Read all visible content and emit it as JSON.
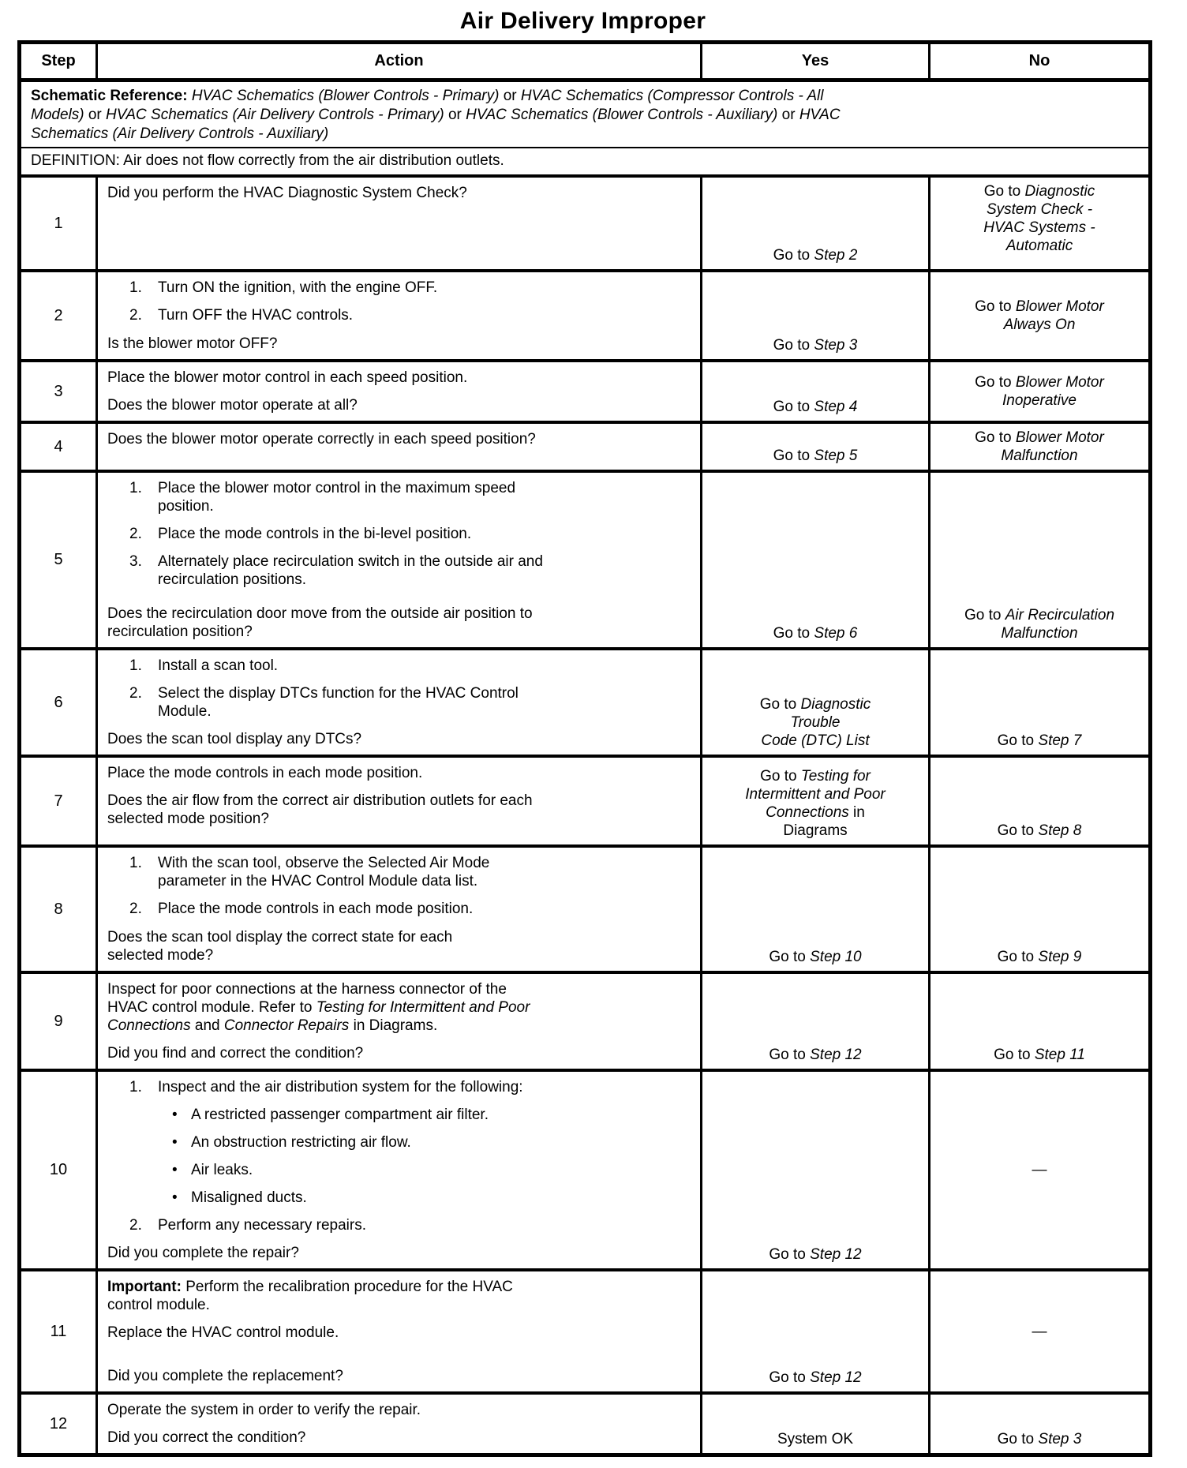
{
  "title": "Air Delivery Improper",
  "table": {
    "headers": [
      "Step",
      "Action",
      "Yes",
      "No"
    ],
    "schematic": {
      "segs": [
        {
          "t": "Schematic Reference: ",
          "s": "b"
        },
        {
          "t": "HVAC Schematics (Blower Controls - Primary)",
          "s": "i"
        },
        {
          "t": " or ",
          "s": "r"
        },
        {
          "t": "HVAC Schematics (Compressor Controls - All\nModels)",
          "s": "i"
        },
        {
          "t": " or ",
          "s": "r"
        },
        {
          "t": "HVAC Schematics (Air Delivery Controls - Primary)",
          "s": "i"
        },
        {
          "t": " or ",
          "s": "r"
        },
        {
          "t": "HVAC Schematics (Blower Controls - Auxiliary)",
          "s": "i"
        },
        {
          "t": " or ",
          "s": "r"
        },
        {
          "t": "HVAC\nSchematics (Air Delivery Controls - Auxiliary)",
          "s": "i"
        }
      ]
    },
    "definition": {
      "segs": [
        {
          "t": "DEFINITION: Air does not flow correctly from the air distribution outlets.",
          "s": "r"
        }
      ]
    },
    "rows": [
      {
        "step": "1",
        "action": [
          {
            "type": "para",
            "segs": [
              {
                "t": "Did you perform the HVAC Diagnostic System Check?",
                "s": "r"
              }
            ]
          }
        ],
        "yes": {
          "valign": "bottom",
          "lines": [
            [
              {
                "t": "Go to ",
                "s": "r"
              },
              {
                "t": "Step 2",
                "s": "i"
              }
            ]
          ]
        },
        "no": {
          "valign": "top",
          "lines": [
            [
              {
                "t": "Go to ",
                "s": "r"
              },
              {
                "t": "Diagnostic",
                "s": "i"
              }
            ],
            [
              {
                "t": "System Check -",
                "s": "i"
              }
            ],
            [
              {
                "t": "HVAC Systems -",
                "s": "i"
              }
            ],
            [
              {
                "t": "Automatic",
                "s": "i"
              }
            ]
          ]
        }
      },
      {
        "step": "2",
        "action": [
          {
            "type": "num",
            "n": "1.",
            "segs": [
              {
                "t": "Turn ON the ignition, with the engine OFF.",
                "s": "r"
              }
            ]
          },
          {
            "type": "num",
            "n": "2.",
            "segs": [
              {
                "t": "Turn OFF the HVAC controls.",
                "s": "r"
              }
            ]
          },
          {
            "type": "para",
            "bottom": true,
            "segs": [
              {
                "t": "Is the blower motor OFF?",
                "s": "r"
              }
            ]
          }
        ],
        "yes": {
          "valign": "bottom",
          "lines": [
            [
              {
                "t": "Go to ",
                "s": "r"
              },
              {
                "t": "Step 3",
                "s": "i"
              }
            ]
          ]
        },
        "no": {
          "valign": "center",
          "lines": [
            [
              {
                "t": "Go to ",
                "s": "r"
              },
              {
                "t": "Blower Motor",
                "s": "i"
              }
            ],
            [
              {
                "t": "Always On",
                "s": "i"
              }
            ]
          ]
        }
      },
      {
        "step": "3",
        "action": [
          {
            "type": "para",
            "segs": [
              {
                "t": "Place the blower motor control in each speed position.",
                "s": "r"
              }
            ]
          },
          {
            "type": "para",
            "bottom": true,
            "segs": [
              {
                "t": "Does the blower motor operate at all?",
                "s": "r"
              }
            ]
          }
        ],
        "yes": {
          "valign": "bottom",
          "lines": [
            [
              {
                "t": "Go to ",
                "s": "r"
              },
              {
                "t": "Step 4",
                "s": "i"
              }
            ]
          ]
        },
        "no": {
          "valign": "center",
          "lines": [
            [
              {
                "t": "Go to ",
                "s": "r"
              },
              {
                "t": "Blower Motor",
                "s": "i"
              }
            ],
            [
              {
                "t": "Inoperative",
                "s": "i"
              }
            ]
          ]
        }
      },
      {
        "step": "4",
        "action": [
          {
            "type": "para",
            "segs": [
              {
                "t": "Does the blower motor operate correctly in each speed position?",
                "s": "r"
              }
            ]
          }
        ],
        "yes": {
          "valign": "bottom",
          "lines": [
            [
              {
                "t": "Go to ",
                "s": "r"
              },
              {
                "t": "Step 5",
                "s": "i"
              }
            ]
          ]
        },
        "no": {
          "valign": "center",
          "lines": [
            [
              {
                "t": "Go to ",
                "s": "r"
              },
              {
                "t": "Blower Motor",
                "s": "i"
              }
            ],
            [
              {
                "t": "Malfunction",
                "s": "i"
              }
            ]
          ]
        }
      },
      {
        "step": "5",
        "action": [
          {
            "type": "num",
            "n": "1.",
            "segs": [
              {
                "t": "Place the blower motor control in the maximum speed\nposition.",
                "s": "r"
              }
            ]
          },
          {
            "type": "num",
            "n": "2.",
            "segs": [
              {
                "t": "Place the mode controls in the bi-level position.",
                "s": "r"
              }
            ]
          },
          {
            "type": "num",
            "n": "3.",
            "segs": [
              {
                "t": "Alternately place recirculation switch in the outside air and\nrecirculation positions.",
                "s": "r"
              }
            ]
          },
          {
            "type": "para",
            "bottom": true,
            "segs": [
              {
                "t": "Does the recirculation door move from the outside air position to\nrecirculation position?",
                "s": "r"
              }
            ]
          }
        ],
        "yes": {
          "valign": "bottom",
          "lines": [
            [
              {
                "t": "Go to ",
                "s": "r"
              },
              {
                "t": "Step 6",
                "s": "i"
              }
            ]
          ]
        },
        "no": {
          "valign": "bottom",
          "lines": [
            [
              {
                "t": "Go to ",
                "s": "r"
              },
              {
                "t": "Air Recirculation",
                "s": "i"
              }
            ],
            [
              {
                "t": "Malfunction",
                "s": "i"
              }
            ]
          ]
        }
      },
      {
        "step": "6",
        "action": [
          {
            "type": "num",
            "n": "1.",
            "segs": [
              {
                "t": "Install a scan tool.",
                "s": "r"
              }
            ]
          },
          {
            "type": "num",
            "n": "2.",
            "segs": [
              {
                "t": "Select the display DTCs function for the HVAC Control\nModule.",
                "s": "r"
              }
            ]
          },
          {
            "type": "para",
            "bottom": true,
            "segs": [
              {
                "t": "Does the scan tool display any DTCs?",
                "s": "r"
              }
            ]
          }
        ],
        "yes": {
          "valign": "bottom",
          "lines": [
            [
              {
                "t": "Go to ",
                "s": "r"
              },
              {
                "t": "Diagnostic",
                "s": "i"
              }
            ],
            [
              {
                "t": "Trouble",
                "s": "i"
              }
            ],
            [
              {
                "t": "Code (DTC) List",
                "s": "i"
              }
            ]
          ]
        },
        "no": {
          "valign": "bottom",
          "lines": [
            [
              {
                "t": "Go to ",
                "s": "r"
              },
              {
                "t": "Step 7",
                "s": "i"
              }
            ]
          ]
        }
      },
      {
        "step": "7",
        "action": [
          {
            "type": "para",
            "segs": [
              {
                "t": "Place the mode controls in each mode position.",
                "s": "r"
              }
            ]
          },
          {
            "type": "para",
            "segs": [
              {
                "t": "Does the air flow from the correct air distribution outlets for each\nselected mode position?",
                "s": "r"
              }
            ]
          }
        ],
        "yes": {
          "valign": "bottom",
          "lines": [
            [
              {
                "t": "Go to ",
                "s": "r"
              },
              {
                "t": "Testing for",
                "s": "i"
              }
            ],
            [
              {
                "t": "Intermittent and Poor",
                "s": "i"
              }
            ],
            [
              {
                "t": "Connections",
                "s": "i"
              },
              {
                "t": " in",
                "s": "r"
              }
            ],
            [
              {
                "t": "Diagrams",
                "s": "r"
              }
            ]
          ]
        },
        "no": {
          "valign": "bottom",
          "lines": [
            [
              {
                "t": "Go to ",
                "s": "r"
              },
              {
                "t": "Step 8",
                "s": "i"
              }
            ]
          ]
        }
      },
      {
        "step": "8",
        "action": [
          {
            "type": "num",
            "n": "1.",
            "segs": [
              {
                "t": "With the scan tool, observe the Selected Air Mode\nparameter in the HVAC Control Module data list.",
                "s": "r"
              }
            ]
          },
          {
            "type": "num",
            "n": "2.",
            "segs": [
              {
                "t": "Place the mode controls in each mode position.",
                "s": "r"
              }
            ]
          },
          {
            "type": "para",
            "bottom": true,
            "segs": [
              {
                "t": "Does the scan tool display the correct state for each\nselected mode?",
                "s": "r"
              }
            ]
          }
        ],
        "yes": {
          "valign": "bottom",
          "lines": [
            [
              {
                "t": "Go to ",
                "s": "r"
              },
              {
                "t": "Step 10",
                "s": "i"
              }
            ]
          ]
        },
        "no": {
          "valign": "bottom",
          "lines": [
            [
              {
                "t": "Go to ",
                "s": "r"
              },
              {
                "t": "Step 9",
                "s": "i"
              }
            ]
          ]
        }
      },
      {
        "step": "9",
        "action": [
          {
            "type": "para",
            "segs": [
              {
                "t": "Inspect for poor connections at the harness connector of the\nHVAC control module. Refer to ",
                "s": "r"
              },
              {
                "t": "Testing for Intermittent and Poor\nConnections",
                "s": "i"
              },
              {
                "t": " and ",
                "s": "r"
              },
              {
                "t": "Connector Repairs",
                "s": "i"
              },
              {
                "t": " in Diagrams.",
                "s": "r"
              }
            ]
          },
          {
            "type": "para",
            "bottom": true,
            "segs": [
              {
                "t": "Did you find and correct the condition?",
                "s": "r"
              }
            ]
          }
        ],
        "yes": {
          "valign": "bottom",
          "lines": [
            [
              {
                "t": "Go to ",
                "s": "r"
              },
              {
                "t": "Step 12",
                "s": "i"
              }
            ]
          ]
        },
        "no": {
          "valign": "bottom",
          "lines": [
            [
              {
                "t": "Go to ",
                "s": "r"
              },
              {
                "t": "Step 11",
                "s": "i"
              }
            ]
          ]
        }
      },
      {
        "step": "10",
        "action": [
          {
            "type": "num",
            "n": "1.",
            "segs": [
              {
                "t": "Inspect and the air distribution system for the following:",
                "s": "r"
              }
            ]
          },
          {
            "type": "bullet",
            "segs": [
              {
                "t": "A restricted passenger compartment air filter.",
                "s": "r"
              }
            ]
          },
          {
            "type": "bullet",
            "segs": [
              {
                "t": "An obstruction restricting air flow.",
                "s": "r"
              }
            ]
          },
          {
            "type": "bullet",
            "segs": [
              {
                "t": "Air leaks.",
                "s": "r"
              }
            ]
          },
          {
            "type": "bullet",
            "segs": [
              {
                "t": "Misaligned ducts.",
                "s": "r"
              }
            ]
          },
          {
            "type": "num",
            "n": "2.",
            "segs": [
              {
                "t": "Perform any necessary repairs.",
                "s": "r"
              }
            ]
          },
          {
            "type": "para",
            "bottom": true,
            "segs": [
              {
                "t": "Did you complete the repair?",
                "s": "r"
              }
            ]
          }
        ],
        "yes": {
          "valign": "bottom",
          "lines": [
            [
              {
                "t": "Go to ",
                "s": "r"
              },
              {
                "t": "Step 12",
                "s": "i"
              }
            ]
          ]
        },
        "no": {
          "valign": "center",
          "lines": [
            [
              {
                "t": "—",
                "s": "r"
              }
            ]
          ]
        }
      },
      {
        "step": "11",
        "action": [
          {
            "type": "para",
            "segs": [
              {
                "t": "Important: ",
                "s": "b"
              },
              {
                "t": "Perform the recalibration procedure for the HVAC\ncontrol module.",
                "s": "r"
              }
            ]
          },
          {
            "type": "para",
            "segs": [
              {
                "t": "Replace the HVAC control module.",
                "s": "r"
              }
            ]
          },
          {
            "type": "para",
            "bottom": true,
            "segs": [
              {
                "t": "Did you complete the replacement?",
                "s": "r"
              }
            ]
          }
        ],
        "yes": {
          "valign": "bottom",
          "lines": [
            [
              {
                "t": "Go to ",
                "s": "r"
              },
              {
                "t": "Step 12",
                "s": "i"
              }
            ]
          ]
        },
        "no": {
          "valign": "center",
          "lines": [
            [
              {
                "t": "—",
                "s": "r"
              }
            ]
          ]
        }
      },
      {
        "step": "12",
        "action": [
          {
            "type": "para",
            "segs": [
              {
                "t": "Operate the system in order to verify the repair.",
                "s": "r"
              }
            ]
          },
          {
            "type": "para",
            "bottom": true,
            "segs": [
              {
                "t": "Did you correct the condition?",
                "s": "r"
              }
            ]
          }
        ],
        "yes": {
          "valign": "bottom",
          "lines": [
            [
              {
                "t": "System OK",
                "s": "r"
              }
            ]
          ]
        },
        "no": {
          "valign": "bottom",
          "lines": [
            [
              {
                "t": "Go to ",
                "s": "r"
              },
              {
                "t": "Step 3",
                "s": "i"
              }
            ]
          ]
        }
      }
    ]
  }
}
